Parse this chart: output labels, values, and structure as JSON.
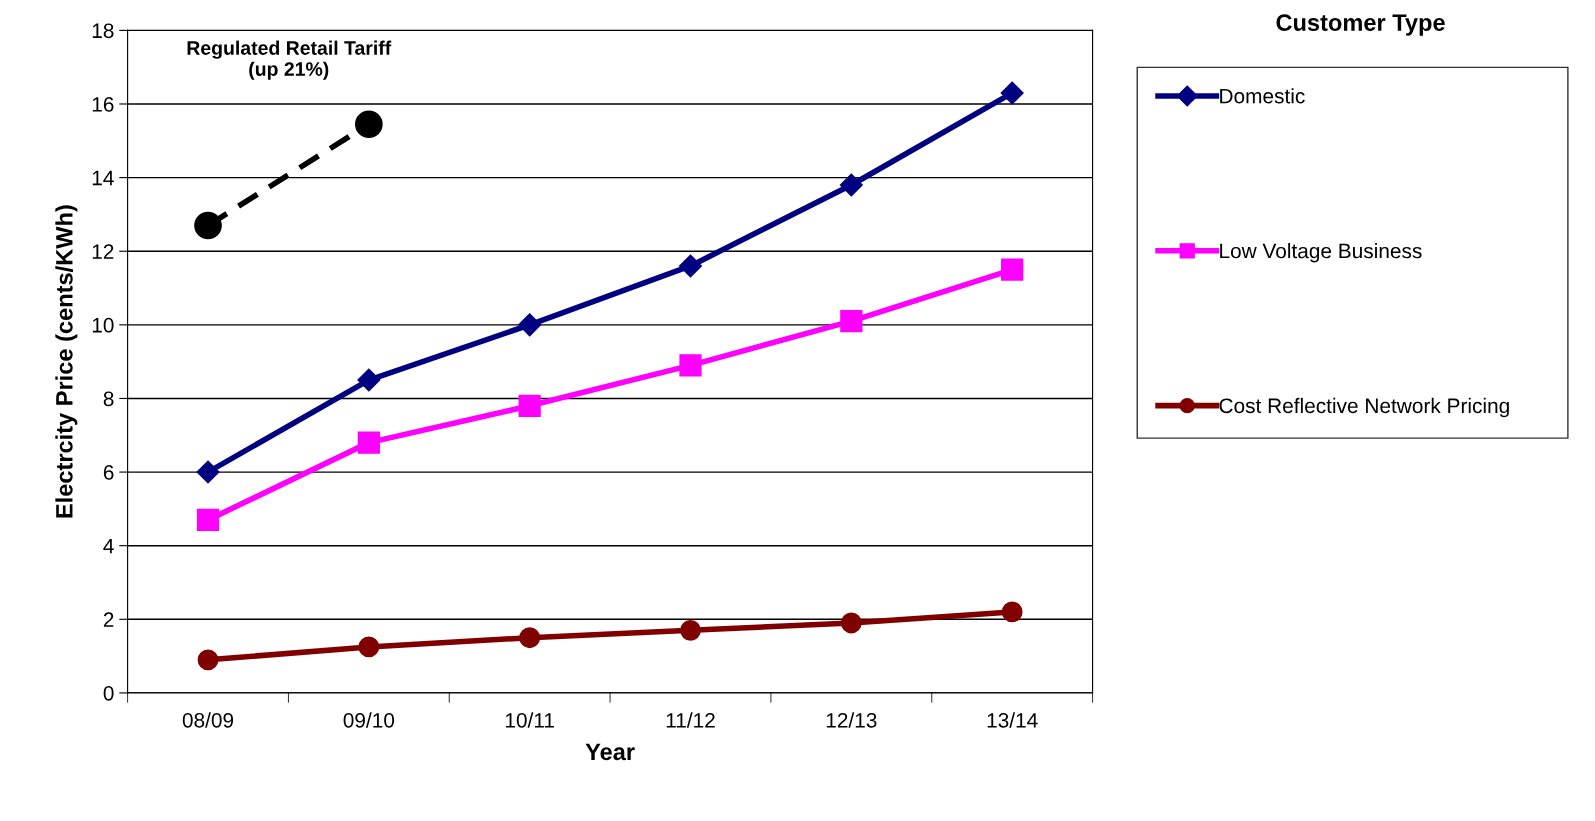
{
  "chart_data": {
    "type": "line",
    "xlabel": "Year",
    "ylabel": "Electrcity Price (cents/KWh)",
    "legend_title": "Customer Type",
    "categories": [
      "08/09",
      "09/10",
      "10/11",
      "11/12",
      "12/13",
      "13/14"
    ],
    "series": [
      {
        "name": "Domestic",
        "color": "#000080",
        "marker": "diamond",
        "values": [
          6.0,
          8.5,
          10.0,
          11.6,
          13.8,
          16.3
        ]
      },
      {
        "name": "Low Voltage Business",
        "color": "#ff00ff",
        "marker": "square",
        "values": [
          4.7,
          6.8,
          7.8,
          8.9,
          10.1,
          11.5
        ]
      },
      {
        "name": "Cost Reflective Network Pricing",
        "color": "#800000",
        "marker": "circle",
        "values": [
          0.9,
          1.25,
          1.5,
          1.7,
          1.9,
          2.2
        ]
      },
      {
        "color": "#000000",
        "marker": "circle",
        "line_style": "dashed",
        "values": [
          12.7,
          15.45,
          null,
          null,
          null,
          null
        ]
      }
    ],
    "annotations": [
      "Regulated Retail Tariff\n(up 21%)"
    ],
    "ylim": [
      0,
      18
    ],
    "yticks": [
      0,
      2,
      4,
      6,
      8,
      10,
      12,
      14,
      16,
      18
    ],
    "grid": "y",
    "legend": "right"
  }
}
